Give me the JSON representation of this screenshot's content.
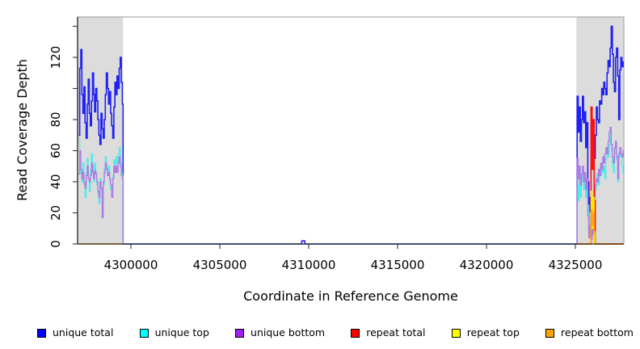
{
  "chart_data": {
    "type": "line",
    "subtype": "step-coverage",
    "xlabel": "Coordinate in Reference Genome",
    "ylabel": "Read Coverage Depth",
    "xlim": [
      4297000,
      4327727
    ],
    "ylim": [
      0,
      146
    ],
    "grid": false,
    "legend_position": "bottom-horizontal",
    "x_ticks": {
      "values": [
        4300000,
        4305000,
        4310000,
        4315000,
        4320000,
        4325000
      ],
      "labels": [
        "4300000",
        "4305000",
        "4310000",
        "4315000",
        "4320000",
        "4325000"
      ]
    },
    "y_ticks": {
      "values": [
        0,
        20,
        40,
        60,
        80,
        100,
        120,
        140
      ],
      "labels": [
        "0",
        "20",
        "40",
        "60",
        "80",
        "",
        "120",
        ""
      ]
    },
    "axis_color": "#000000",
    "box_color": "#999999",
    "tick_color": "#333333",
    "shaded_regions": [
      {
        "x0": 4297050,
        "x1": 4299560,
        "color": "#DCDCDC"
      },
      {
        "x0": 4325060,
        "x1": 4327700,
        "color": "#DCDCDC"
      }
    ],
    "series": [
      {
        "name": "unique-total",
        "legend_label": "unique total",
        "color": "#0000FF",
        "line_color": "#2121F3",
        "width": 1.6,
        "paths": [
          [
            {
              "x0": 4297060,
              "dx": 60,
              "y": [
                70,
                113,
                125,
                96,
                84,
                101,
                78,
                68,
                90,
                106,
                84,
                76,
                92,
                110,
                96,
                85,
                100,
                92,
                80,
                70,
                64,
                84,
                74,
                68,
                80,
                96,
                110,
                100,
                90,
                98,
                84,
                76,
                68,
                88,
                104,
                96,
                108,
                100,
                113,
                120,
                104,
                90
              ],
              "x1": 4299560
            },
            {
              "pts": [
                [
                  4299560,
                  0
                ],
                [
                  4309600,
                  0
                ],
                [
                  4309610,
                  2
                ],
                [
                  4309780,
                  0
                ],
                [
                  4325100,
                  0
                ]
              ]
            },
            {
              "x0": 4325100,
              "dx": 60,
              "y": [
                95,
                72,
                88,
                66,
                80,
                95,
                78,
                85,
                62,
                78,
                40,
                8,
                30,
                5,
                20,
                10,
                55,
                70,
                88,
                80,
                78,
                92,
                90,
                100,
                96,
                104,
                100,
                96,
                110,
                118,
                114,
                126,
                140,
                122,
                104,
                98,
                120,
                126,
                108,
                80,
                112,
                120,
                114,
                117
              ],
              "x1": 4327727
            }
          ]
        ]
      },
      {
        "name": "unique-top",
        "legend_label": "unique top",
        "color": "#00FFFF",
        "line_color": "#53EAEA",
        "width": 1.3,
        "paths": [
          [
            {
              "x0": 4297060,
              "dx": 60,
              "y": [
                68,
                55,
                45,
                40,
                52,
                38,
                30,
                45,
                55,
                42,
                34,
                48,
                58,
                50,
                40,
                52,
                46,
                38,
                32,
                26,
                42,
                35,
                30,
                38,
                48,
                56,
                50,
                44,
                50,
                40,
                35,
                30,
                44,
                54,
                48,
                56,
                52,
                58,
                62,
                52,
                46,
                44
              ],
              "x1": 4299560
            },
            {
              "pts": [
                [
                  4299560,
                  0
                ],
                [
                  4325100,
                  0
                ]
              ]
            },
            {
              "x0": 4325100,
              "dx": 60,
              "y": [
                38,
                28,
                45,
                30,
                40,
                48,
                35,
                42,
                30,
                38,
                25,
                5,
                20,
                3,
                12,
                8,
                28,
                35,
                45,
                40,
                38,
                48,
                44,
                52,
                46,
                50,
                42,
                55,
                60,
                56,
                64,
                72,
                60,
                50,
                46,
                58,
                64,
                54,
                40,
                56,
                60,
                56,
                50,
                45
              ],
              "x1": 4327727
            }
          ]
        ]
      },
      {
        "name": "unique-bottom",
        "legend_label": "unique bottom",
        "color": "#A020F0",
        "line_color": "#AE7BE2",
        "width": 1.3,
        "paths": [
          [
            {
              "x0": 4297060,
              "dx": 60,
              "y": [
                45,
                60,
                48,
                42,
                46,
                40,
                36,
                44,
                50,
                42,
                40,
                44,
                52,
                46,
                42,
                47,
                45,
                40,
                34,
                30,
                40,
                36,
                17,
                40,
                46,
                52,
                48,
                44,
                46,
                42,
                38,
                30,
                42,
                50,
                46,
                50,
                46,
                52,
                56,
                50,
                44,
                42
              ],
              "x1": 4299560
            },
            {
              "pts": [
                [
                  4299560,
                  0
                ],
                [
                  4325100,
                  0
                ]
              ]
            },
            {
              "x0": 4325100,
              "dx": 60,
              "y": [
                55,
                42,
                50,
                38,
                45,
                50,
                40,
                46,
                35,
                42,
                18,
                4,
                12,
                3,
                10,
                6,
                30,
                38,
                42,
                40,
                48,
                44,
                52,
                48,
                56,
                52,
                58,
                62,
                58,
                66,
                72,
                75,
                64,
                56,
                52,
                62,
                66,
                56,
                42,
                58,
                62,
                58,
                56,
                60
              ],
              "x1": 4327727
            }
          ]
        ]
      },
      {
        "name": "repeat-total",
        "legend_label": "repeat total",
        "color": "#FF0000",
        "line_color": "#FF1010",
        "width": 1.6,
        "paths": [
          [
            {
              "x0": 4325100,
              "dx": 60,
              "y": [
                0,
                0,
                0,
                0,
                0,
                0,
                0,
                0,
                0,
                0,
                0,
                0,
                0,
                88,
                48,
                80,
                28,
                0,
                0,
                0,
                0,
                0,
                0,
                0,
                0,
                0,
                0,
                0,
                0,
                0,
                0,
                0,
                0,
                0,
                0,
                0,
                0,
                0,
                0,
                0,
                0,
                0,
                0,
                0
              ],
              "x1": 4327700
            }
          ]
        ]
      },
      {
        "name": "repeat-top",
        "legend_label": "repeat top",
        "color": "#FFFF00",
        "line_color": "#FFE400",
        "width": 1.3,
        "paths": [
          [
            {
              "x0": 4325100,
              "dx": 60,
              "y": [
                0,
                0,
                0,
                0,
                0,
                0,
                0,
                0,
                0,
                0,
                0,
                0,
                0,
                34,
                10,
                30,
                0,
                0,
                0,
                0,
                0,
                0,
                0,
                0,
                0,
                0,
                0,
                0,
                0,
                0,
                0,
                0,
                0,
                0,
                0,
                0,
                0,
                0,
                0,
                0,
                0,
                0,
                0,
                0
              ],
              "x1": 4327700
            }
          ]
        ]
      },
      {
        "name": "repeat-bottom",
        "legend_label": "repeat bottom",
        "color": "#FFA500",
        "line_color": "#FFA317",
        "width": 1.5,
        "paths": [
          [
            {
              "pts": [
                [
                  4297060,
                  0
                ],
                [
                  4299560,
                  0
                ]
              ]
            }
          ],
          [
            {
              "pts": [
                [
                  4325100,
                  0
                ],
                [
                  4325820,
                  0
                ],
                [
                  4325880,
                  22
                ],
                [
                  4325940,
                  12
                ],
                [
                  4326000,
                  20
                ],
                [
                  4326060,
                  8
                ],
                [
                  4326120,
                  0
                ],
                [
                  4327700,
                  0
                ]
              ]
            }
          ]
        ]
      }
    ]
  }
}
